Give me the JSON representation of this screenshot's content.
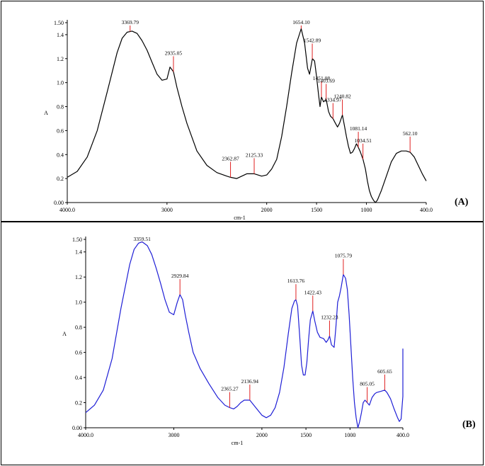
{
  "chart_data": [
    {
      "type": "line",
      "panel_label": "(A)",
      "xlabel": "cm-1",
      "ylabel": "A",
      "xlim": [
        4000,
        400
      ],
      "ylim": [
        0,
        1.5
      ],
      "x_ticks": [
        "4000.0",
        "3000",
        "2000",
        "1500",
        "1000",
        "400.0"
      ],
      "x_tick_values": [
        4000,
        3000,
        2000,
        1500,
        1000,
        400
      ],
      "y_ticks": [
        "0.00",
        "0.2",
        "0.4",
        "0.6",
        "0.8",
        "1.0",
        "1.2",
        "1.4",
        "1.50"
      ],
      "y_tick_values": [
        0,
        0.2,
        0.4,
        0.6,
        0.8,
        1.0,
        1.2,
        1.4,
        1.5
      ],
      "line_color": "#000000",
      "series": [
        {
          "x": [
            4000,
            3900,
            3800,
            3700,
            3600,
            3500,
            3450,
            3400,
            3350,
            3300,
            3250,
            3200,
            3150,
            3100,
            3050,
            3000,
            2970,
            2935,
            2900,
            2850,
            2800,
            2700,
            2600,
            2500,
            2400,
            2362,
            2300,
            2250,
            2200,
            2125,
            2050,
            2000,
            1950,
            1900,
            1850,
            1800,
            1750,
            1700,
            1654,
            1620,
            1590,
            1570,
            1542,
            1520,
            1500,
            1480,
            1465,
            1451,
            1430,
            1403,
            1380,
            1360,
            1335,
            1310,
            1290,
            1270,
            1241,
            1220,
            1200,
            1180,
            1160,
            1140,
            1120,
            1100,
            1081,
            1060,
            1034,
            1010,
            990,
            970,
            950,
            930,
            910,
            890,
            870,
            850,
            800,
            750,
            700,
            650,
            600,
            562,
            520,
            480,
            440,
            400
          ],
          "y": [
            0.21,
            0.26,
            0.38,
            0.6,
            0.92,
            1.25,
            1.37,
            1.42,
            1.43,
            1.41,
            1.35,
            1.27,
            1.17,
            1.07,
            1.02,
            1.03,
            1.13,
            1.09,
            0.96,
            0.8,
            0.66,
            0.43,
            0.31,
            0.25,
            0.22,
            0.21,
            0.2,
            0.22,
            0.24,
            0.24,
            0.22,
            0.23,
            0.28,
            0.36,
            0.55,
            0.8,
            1.08,
            1.33,
            1.45,
            1.33,
            1.12,
            1.07,
            1.2,
            1.18,
            1.05,
            0.9,
            0.8,
            0.88,
            0.84,
            0.86,
            0.76,
            0.72,
            0.7,
            0.66,
            0.63,
            0.66,
            0.73,
            0.64,
            0.55,
            0.47,
            0.41,
            0.42,
            0.45,
            0.49,
            0.46,
            0.42,
            0.36,
            0.28,
            0.18,
            0.1,
            0.05,
            0.02,
            0.0,
            0.02,
            0.06,
            0.1,
            0.22,
            0.34,
            0.41,
            0.43,
            0.43,
            0.42,
            0.38,
            0.31,
            0.24,
            0.18
          ]
        }
      ],
      "peaks": [
        {
          "x": 3369.79,
          "label": "3369.79"
        },
        {
          "x": 2935.05,
          "label": "2935.05"
        },
        {
          "x": 2362.87,
          "label": "2362.87"
        },
        {
          "x": 2125.33,
          "label": "2125.33"
        },
        {
          "x": 1654.1,
          "label": "1654.10"
        },
        {
          "x": 1542.89,
          "label": "1542.89"
        },
        {
          "x": 1451.08,
          "label": "1451.08"
        },
        {
          "x": 1403.69,
          "label": "1403.69"
        },
        {
          "x": 1334.97,
          "label": "1334.97"
        },
        {
          "x": 1240.82,
          "label": "1240.82"
        },
        {
          "x": 1081.14,
          "label": "1081.14"
        },
        {
          "x": 1034.51,
          "label": "1034.51"
        },
        {
          "x": 562.1,
          "label": "562.10"
        }
      ]
    },
    {
      "type": "line",
      "panel_label": "(B)",
      "xlabel": "cm-1",
      "ylabel": "A",
      "xlim": [
        4000,
        400
      ],
      "ylim": [
        0,
        1.5
      ],
      "x_ticks": [
        "4000.0",
        "3000",
        "2000",
        "1500",
        "1000",
        "400.0"
      ],
      "x_tick_values": [
        4000,
        3000,
        2000,
        1500,
        1000,
        400
      ],
      "y_ticks": [
        "0.00",
        "0.2",
        "0.4",
        "0.6",
        "0.8",
        "1.0",
        "1.2",
        "1.4",
        "1.50"
      ],
      "y_tick_values": [
        0,
        0.2,
        0.4,
        0.6,
        0.8,
        1.0,
        1.2,
        1.4,
        1.5
      ],
      "line_color": "#1f1fd6",
      "series": [
        {
          "x": [
            4000,
            3900,
            3800,
            3700,
            3600,
            3500,
            3450,
            3400,
            3359,
            3300,
            3250,
            3200,
            3150,
            3100,
            3050,
            3000,
            2960,
            2930,
            2900,
            2870,
            2830,
            2780,
            2700,
            2600,
            2500,
            2420,
            2365,
            2320,
            2280,
            2240,
            2200,
            2137,
            2080,
            2000,
            1950,
            1900,
            1850,
            1800,
            1750,
            1700,
            1660,
            1630,
            1614,
            1595,
            1570,
            1550,
            1530,
            1510,
            1490,
            1470,
            1450,
            1422,
            1400,
            1370,
            1340,
            1300,
            1270,
            1250,
            1232,
            1210,
            1180,
            1160,
            1140,
            1120,
            1100,
            1076,
            1050,
            1030,
            1010,
            990,
            970,
            950,
            930,
            910,
            890,
            870,
            850,
            830,
            805,
            780,
            750,
            720,
            700,
            650,
            606,
            580,
            540,
            500,
            460,
            440,
            420,
            400,
            400
          ],
          "y": [
            0.12,
            0.18,
            0.3,
            0.55,
            0.95,
            1.3,
            1.42,
            1.47,
            1.48,
            1.45,
            1.38,
            1.27,
            1.15,
            1.02,
            0.92,
            0.9,
            1.0,
            1.06,
            1.02,
            0.9,
            0.76,
            0.6,
            0.47,
            0.35,
            0.24,
            0.18,
            0.16,
            0.15,
            0.17,
            0.2,
            0.22,
            0.22,
            0.17,
            0.1,
            0.08,
            0.1,
            0.16,
            0.28,
            0.48,
            0.75,
            0.95,
            1.01,
            1.02,
            0.97,
            0.72,
            0.5,
            0.42,
            0.42,
            0.52,
            0.7,
            0.86,
            0.93,
            0.85,
            0.76,
            0.72,
            0.71,
            0.68,
            0.7,
            0.73,
            0.66,
            0.64,
            0.8,
            1.0,
            1.05,
            1.12,
            1.22,
            1.19,
            1.1,
            0.9,
            0.65,
            0.4,
            0.2,
            0.08,
            0.0,
            0.05,
            0.12,
            0.2,
            0.22,
            0.2,
            0.18,
            0.24,
            0.27,
            0.28,
            0.29,
            0.3,
            0.28,
            0.23,
            0.15,
            0.08,
            0.05,
            0.07,
            0.25,
            0.63
          ]
        }
      ],
      "peaks": [
        {
          "x": 3359.51,
          "label": "3359.51"
        },
        {
          "x": 2929.84,
          "label": "2929.84"
        },
        {
          "x": 2365.27,
          "label": "2365.27"
        },
        {
          "x": 2136.94,
          "label": "2136.94"
        },
        {
          "x": 1613.76,
          "label": "1613.76"
        },
        {
          "x": 1422.43,
          "label": "1422.43"
        },
        {
          "x": 1232.23,
          "label": "1232.23"
        },
        {
          "x": 1075.79,
          "label": "1075.79"
        },
        {
          "x": 805.05,
          "label": "805.05"
        },
        {
          "x": 605.65,
          "label": "605.65"
        }
      ]
    }
  ]
}
